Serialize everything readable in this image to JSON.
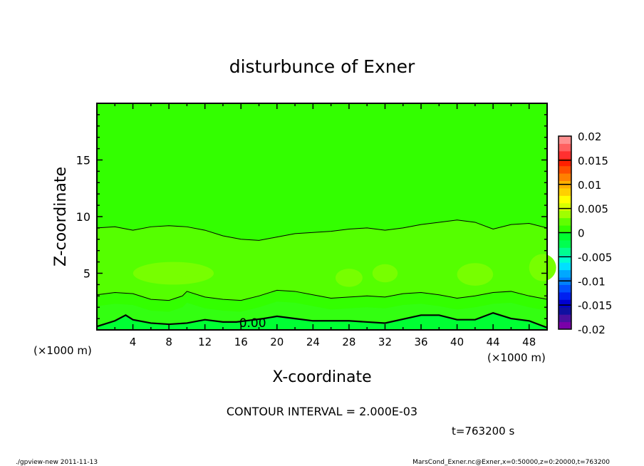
{
  "chart_data": {
    "type": "contour",
    "title": "disturbunce of Exner",
    "xlabel": "X-coordinate",
    "ylabel": "Z-coordinate",
    "x_unit_label": "(×1000 m)",
    "xlim": [
      0,
      50
    ],
    "ylim": [
      0,
      20
    ],
    "x_ticks": [
      4,
      8,
      12,
      16,
      20,
      24,
      28,
      32,
      36,
      40,
      44,
      48
    ],
    "y_ticks": [
      5,
      10,
      15
    ],
    "contour_interval_text": "CONTOUR INTERVAL = 2.000E-03",
    "time_text": "t=763200 s",
    "zero_contour_label": "0.00",
    "contours": [
      {
        "level": 0.002,
        "x": [
          0,
          2,
          4,
          6,
          8,
          10,
          12,
          14,
          16,
          18,
          20,
          22,
          24,
          26,
          28,
          30,
          32,
          34,
          36,
          38,
          40,
          42,
          44,
          46,
          48,
          50
        ],
        "z": [
          9.0,
          9.1,
          8.8,
          9.1,
          9.2,
          9.1,
          8.8,
          8.3,
          8.0,
          7.9,
          8.2,
          8.5,
          8.6,
          8.7,
          8.9,
          9.0,
          8.8,
          9.0,
          9.3,
          9.5,
          9.7,
          9.5,
          8.9,
          9.3,
          9.4,
          9.0
        ]
      },
      {
        "level": 0.002,
        "x": [
          0,
          2,
          4,
          6,
          8,
          9.5,
          10,
          12,
          14,
          16,
          18,
          20,
          22,
          24,
          26,
          28,
          30,
          32,
          34,
          36,
          38,
          40,
          42,
          44,
          46,
          48,
          50
        ],
        "z": [
          3.1,
          3.3,
          3.2,
          2.7,
          2.6,
          3.0,
          3.4,
          2.9,
          2.7,
          2.6,
          3.0,
          3.5,
          3.4,
          3.1,
          2.8,
          2.9,
          3.0,
          2.9,
          3.2,
          3.3,
          3.1,
          2.8,
          3.0,
          3.3,
          3.4,
          3.0,
          2.7
        ]
      },
      {
        "level": 0.0,
        "x": [
          0,
          2,
          3.2,
          4,
          6,
          8,
          10,
          12,
          14,
          15.5,
          18.5,
          20,
          22,
          24,
          28,
          32,
          36,
          38,
          40,
          42,
          44,
          46,
          48,
          50
        ],
        "z": [
          0.3,
          0.8,
          1.3,
          0.9,
          0.6,
          0.5,
          0.6,
          0.9,
          0.7,
          0.7,
          1.0,
          1.2,
          1.0,
          0.8,
          0.8,
          0.6,
          1.3,
          1.3,
          0.9,
          0.9,
          1.5,
          1.0,
          0.8,
          0.2
        ]
      }
    ],
    "colorbar": {
      "ticks": [
        "0.02",
        "0.015",
        "0.01",
        "0.005",
        "0",
        "-0.005",
        "-0.01",
        "-0.015",
        "-0.02"
      ],
      "range": [
        -0.02,
        0.02
      ],
      "colors": [
        "#7a00a8",
        "#4a10a0",
        "#1010a0",
        "#0000d0",
        "#0020f0",
        "#0050ff",
        "#0080ff",
        "#00a8ff",
        "#00e0ff",
        "#00ffd0",
        "#00ff90",
        "#00ff50",
        "#00ff30",
        "#33ff00",
        "#60ff00",
        "#a0ff00",
        "#d8ff00",
        "#ffff00",
        "#ffd000",
        "#ffb000",
        "#ff8000",
        "#ff5000",
        "#ff2000",
        "#ff3030",
        "#ff6060",
        "#ff9090"
      ]
    },
    "fill_colors": {
      "top": "#33ff00",
      "middle": "#55ff00",
      "blob": "#77ff00",
      "lower": "#33ff11",
      "bottom": "#00ff33"
    }
  },
  "footer": {
    "left": "./gpview-new  2011-11-13",
    "right": "MarsCond_Exner.nc@Exner,x=0:50000,z=0:20000,t=763200"
  }
}
